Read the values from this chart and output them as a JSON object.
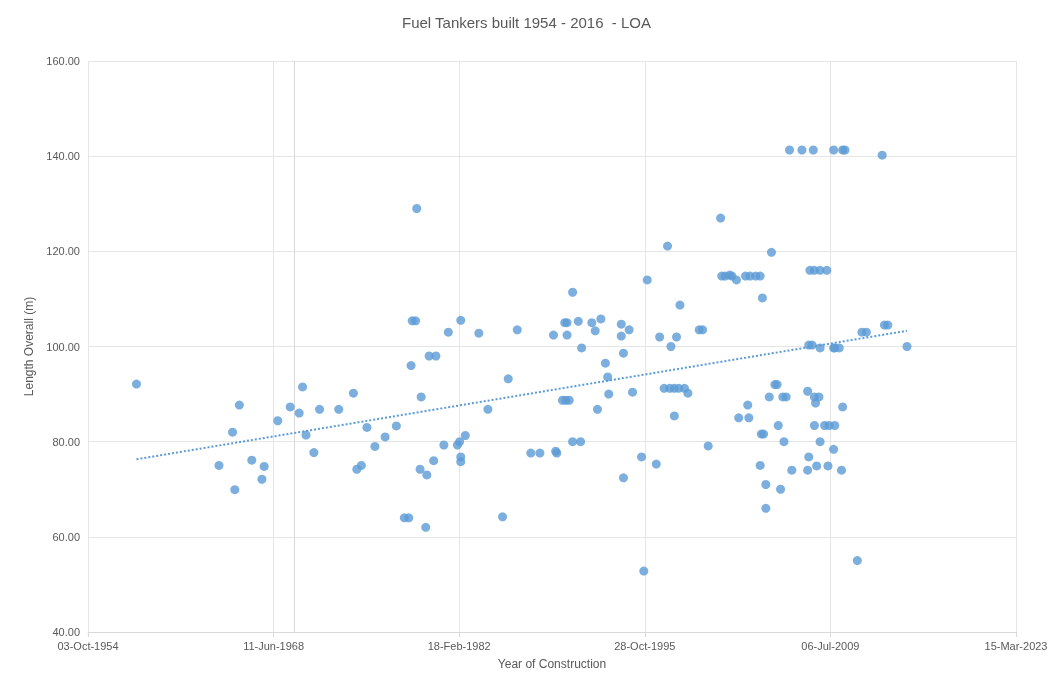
{
  "chart_data": {
    "type": "scatter",
    "title": "Fuel Tankers built 1954 - 2016  - LOA",
    "xlabel": "Year of Construction",
    "ylabel": "Length Overall (m)",
    "xlim": [
      "1954-10-03",
      "2023-03-15"
    ],
    "xticks": [
      {
        "value": "1954-10-03",
        "label": "03-Oct-1954"
      },
      {
        "value": "1968-06-11",
        "label": "11-Jun-1968"
      },
      {
        "value": "1982-02-18",
        "label": "18-Feb-1982"
      },
      {
        "value": "1995-10-28",
        "label": "28-Oct-1995"
      },
      {
        "value": "2009-07-06",
        "label": "06-Jul-2009"
      },
      {
        "value": "2023-03-15",
        "label": "15-Mar-2023"
      }
    ],
    "ylim": [
      40,
      160
    ],
    "yticks": [
      {
        "value": 40,
        "label": "40.00"
      },
      {
        "value": 60,
        "label": "60.00"
      },
      {
        "value": 80,
        "label": "80.00"
      },
      {
        "value": 100,
        "label": "100.00"
      },
      {
        "value": 120,
        "label": "120.00"
      },
      {
        "value": 140,
        "label": "140.00"
      },
      {
        "value": 160,
        "label": "160.00"
      }
    ],
    "grid": true,
    "marker": "circle",
    "series": [
      {
        "color": "#5b9bd5",
        "x": [
          "1958-05",
          "1964-06",
          "1965-06",
          "1965-08",
          "1965-12",
          "1966-11",
          "1967-08",
          "1967-10",
          "1968-10",
          "1969-09",
          "1970-05",
          "1970-08",
          "1970-11",
          "1971-06",
          "1971-11",
          "1973-04",
          "1974-05",
          "1974-08",
          "1974-12",
          "1975-05",
          "1975-12",
          "1976-09",
          "1977-07",
          "1978-02",
          "1978-06",
          "1978-08",
          "1978-09",
          "1978-12",
          "1979-01",
          "1979-04",
          "1979-05",
          "1979-09",
          "1979-10",
          "1979-12",
          "1980-04",
          "1980-06",
          "1981-01",
          "1981-05",
          "1982-01",
          "1982-03",
          "1982-04",
          "1982-04",
          "1982-04",
          "1982-08",
          "1983-08",
          "1984-04",
          "1985-05",
          "1985-10",
          "1986-06",
          "1987-06",
          "1988-02",
          "1989-02",
          "1989-04",
          "1989-05",
          "1989-10",
          "1990-01",
          "1990-04",
          "1989-12",
          "1990-02",
          "1990-02",
          "1990-07",
          "1990-07",
          "1990-12",
          "1991-02",
          "1991-03",
          "1991-12",
          "1992-03",
          "1992-05",
          "1992-08",
          "1992-12",
          "1993-02",
          "1993-03",
          "1994-02",
          "1994-02",
          "1994-04",
          "1994-04",
          "1994-09",
          "1994-12",
          "1995-08",
          "1995-10",
          "1996-01",
          "1996-09",
          "1996-12",
          "1997-04",
          "1997-07",
          "1997-09",
          "1997-10",
          "1998-01",
          "1998-01",
          "1998-03",
          "1998-05",
          "1998-06",
          "1998-10",
          "1999-01",
          "1999-11",
          "2000-02",
          "2000-07",
          "2001-06",
          "2001-07",
          "2001-10",
          "2002-02",
          "2002-04",
          "2002-08",
          "2002-10",
          "2003-04",
          "2003-06",
          "2003-07",
          "2003-08",
          "2004-01",
          "2004-05",
          "2004-05",
          "2004-06",
          "2004-07",
          "2004-08",
          "2004-10",
          "2004-10",
          "2005-01",
          "2005-03",
          "2005-06",
          "2005-08",
          "2005-09",
          "2005-11",
          "2006-01",
          "2006-02",
          "2006-04",
          "2006-07",
          "2006-09",
          "2007-06",
          "2007-11",
          "2007-11",
          "2007-12",
          "2007-12",
          "2008-01",
          "2008-03",
          "2008-04",
          "2008-05",
          "2008-05",
          "2008-05",
          "2008-06",
          "2008-07",
          "2008-09",
          "2008-10",
          "2008-10",
          "2008-10",
          "2009-02",
          "2009-04",
          "2009-05",
          "2009-06",
          "2009-10",
          "2009-10",
          "2009-10",
          "2009-11",
          "2009-11",
          "2010-03",
          "2010-05",
          "2010-06",
          "2010-06",
          "2010-08",
          "2011-07",
          "2011-11",
          "2012-03",
          "2013-05",
          "2013-07",
          "2013-10",
          "2015-03"
        ],
        "values": [
          92.1,
          75.0,
          82.0,
          69.9,
          87.7,
          76.1,
          72.1,
          74.8,
          84.4,
          87.3,
          86.0,
          91.5,
          81.4,
          77.7,
          86.8,
          86.8,
          90.2,
          74.2,
          75.0,
          83.0,
          79.0,
          81.0,
          83.3,
          64.0,
          64.0,
          96.0,
          105.4,
          105.4,
          129.0,
          74.2,
          89.4,
          62.0,
          73.0,
          98.0,
          76.0,
          98.0,
          79.3,
          103.0,
          79.3,
          80.0,
          76.8,
          75.8,
          105.5,
          81.3,
          102.8,
          86.8,
          64.2,
          93.2,
          103.5,
          77.6,
          77.6,
          102.4,
          78.0,
          77.6,
          88.7,
          88.7,
          88.7,
          105.0,
          105.0,
          102.4,
          111.4,
          80.0,
          105.3,
          80.0,
          99.7,
          105.0,
          103.3,
          86.8,
          105.8,
          96.5,
          93.6,
          90.0,
          104.7,
          102.2,
          98.6,
          72.4,
          103.5,
          90.4,
          76.8,
          52.8,
          114.0,
          75.3,
          102.0,
          91.2,
          121.1,
          91.2,
          100.0,
          91.2,
          85.4,
          102.0,
          91.2,
          108.7,
          91.2,
          90.2,
          103.5,
          103.5,
          79.1,
          127.0,
          114.8,
          114.8,
          115.0,
          114.8,
          114.0,
          85.0,
          114.8,
          87.7,
          85.0,
          114.8,
          114.8,
          114.8,
          75.0,
          81.6,
          110.2,
          81.6,
          71.0,
          66.0,
          89.4,
          119.8,
          92.0,
          92.0,
          83.4,
          70.0,
          89.4,
          80.0,
          89.4,
          141.3,
          74.0,
          141.3,
          90.6,
          74.0,
          100.3,
          76.8,
          116.0,
          100.3,
          141.3,
          89.4,
          83.4,
          116.0,
          88.1,
          74.9,
          89.4,
          80.0,
          99.7,
          116.0,
          83.4,
          116.0,
          74.9,
          83.4,
          78.4,
          141.3,
          99.7,
          83.4,
          99.7,
          99.7,
          74.0,
          87.3,
          141.3,
          141.3,
          55.0,
          103.0,
          103.0,
          140.2,
          104.5,
          104.5,
          100.0
        ]
      },
      {
        "type": "line",
        "color": "#5b9bd5",
        "line_style": "dotted",
        "marker": "none",
        "x": [
          "1958-05",
          "2015-03"
        ],
        "values": [
          76.3,
          103.3
        ]
      }
    ]
  }
}
